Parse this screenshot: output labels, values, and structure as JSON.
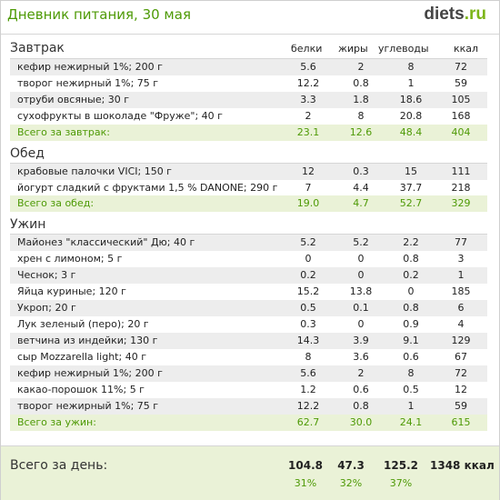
{
  "header": {
    "title": "Дневник питания, 30 мая",
    "logo_main": "diets",
    "logo_tld": ".ru"
  },
  "columns": {
    "protein": "белки",
    "fat": "жиры",
    "carbs": "углеводы",
    "kcal": "ккал"
  },
  "breakfast": {
    "title": "Завтрак",
    "rows": [
      {
        "name": "кефир нежирный 1%; 200 г",
        "p": "5.6",
        "f": "2",
        "c": "8",
        "k": "72"
      },
      {
        "name": "творог нежирный 1%; 75 г",
        "p": "12.2",
        "f": "0.8",
        "c": "1",
        "k": "59"
      },
      {
        "name": "отруби овсяные; 30 г",
        "p": "3.3",
        "f": "1.8",
        "c": "18.6",
        "k": "105"
      },
      {
        "name": "сухофрукты в шоколаде \"Фруже\"; 40 г",
        "p": "2",
        "f": "8",
        "c": "20.8",
        "k": "168"
      }
    ],
    "total": {
      "name": "Всего за завтрак:",
      "p": "23.1",
      "f": "12.6",
      "c": "48.4",
      "k": "404"
    }
  },
  "lunch": {
    "title": "Обед",
    "rows": [
      {
        "name": "крабовые палочки VICI; 150 г",
        "p": "12",
        "f": "0.3",
        "c": "15",
        "k": "111"
      },
      {
        "name": "йогурт сладкий с фруктами 1,5 % DANONE; 290 г",
        "p": "7",
        "f": "4.4",
        "c": "37.7",
        "k": "218"
      }
    ],
    "total": {
      "name": "Всего за обед:",
      "p": "19.0",
      "f": "4.7",
      "c": "52.7",
      "k": "329"
    }
  },
  "dinner": {
    "title": "Ужин",
    "rows": [
      {
        "name": "Майонез \"классический\" Дю; 40 г",
        "p": "5.2",
        "f": "5.2",
        "c": "2.2",
        "k": "77"
      },
      {
        "name": "хрен с лимоном; 5 г",
        "p": "0",
        "f": "0",
        "c": "0.8",
        "k": "3"
      },
      {
        "name": "Чеснок; 3 г",
        "p": "0.2",
        "f": "0",
        "c": "0.2",
        "k": "1"
      },
      {
        "name": "Яйца куриные; 120 г",
        "p": "15.2",
        "f": "13.8",
        "c": "0",
        "k": "185"
      },
      {
        "name": "Укроп; 20 г",
        "p": "0.5",
        "f": "0.1",
        "c": "0.8",
        "k": "6"
      },
      {
        "name": "Лук зеленый (перо); 20 г",
        "p": "0.3",
        "f": "0",
        "c": "0.9",
        "k": "4"
      },
      {
        "name": "ветчина из индейки; 130 г",
        "p": "14.3",
        "f": "3.9",
        "c": "9.1",
        "k": "129"
      },
      {
        "name": "сыр Mozzarella light; 40 г",
        "p": "8",
        "f": "3.6",
        "c": "0.6",
        "k": "67"
      },
      {
        "name": "кефир нежирный 1%; 200 г",
        "p": "5.6",
        "f": "2",
        "c": "8",
        "k": "72"
      },
      {
        "name": "какао-порошок 11%; 5 г",
        "p": "1.2",
        "f": "0.6",
        "c": "0.5",
        "k": "12"
      },
      {
        "name": "творог нежирный 1%; 75 г",
        "p": "12.2",
        "f": "0.8",
        "c": "1",
        "k": "59"
      }
    ],
    "total": {
      "name": "Всего за ужин:",
      "p": "62.7",
      "f": "30.0",
      "c": "24.1",
      "k": "615"
    }
  },
  "day": {
    "title": "Всего за день:",
    "p": "104.8",
    "f": "47.3",
    "c": "125.2",
    "k": "1348 ккал",
    "p_pct": "31%",
    "f_pct": "32%",
    "c_pct": "37%"
  },
  "colors": {
    "accent": "#4e9a06",
    "logo_dark": "#444444",
    "logo_green": "#7cb518",
    "row_shade": "#ededed",
    "total_bg": "#eaf2d7"
  }
}
